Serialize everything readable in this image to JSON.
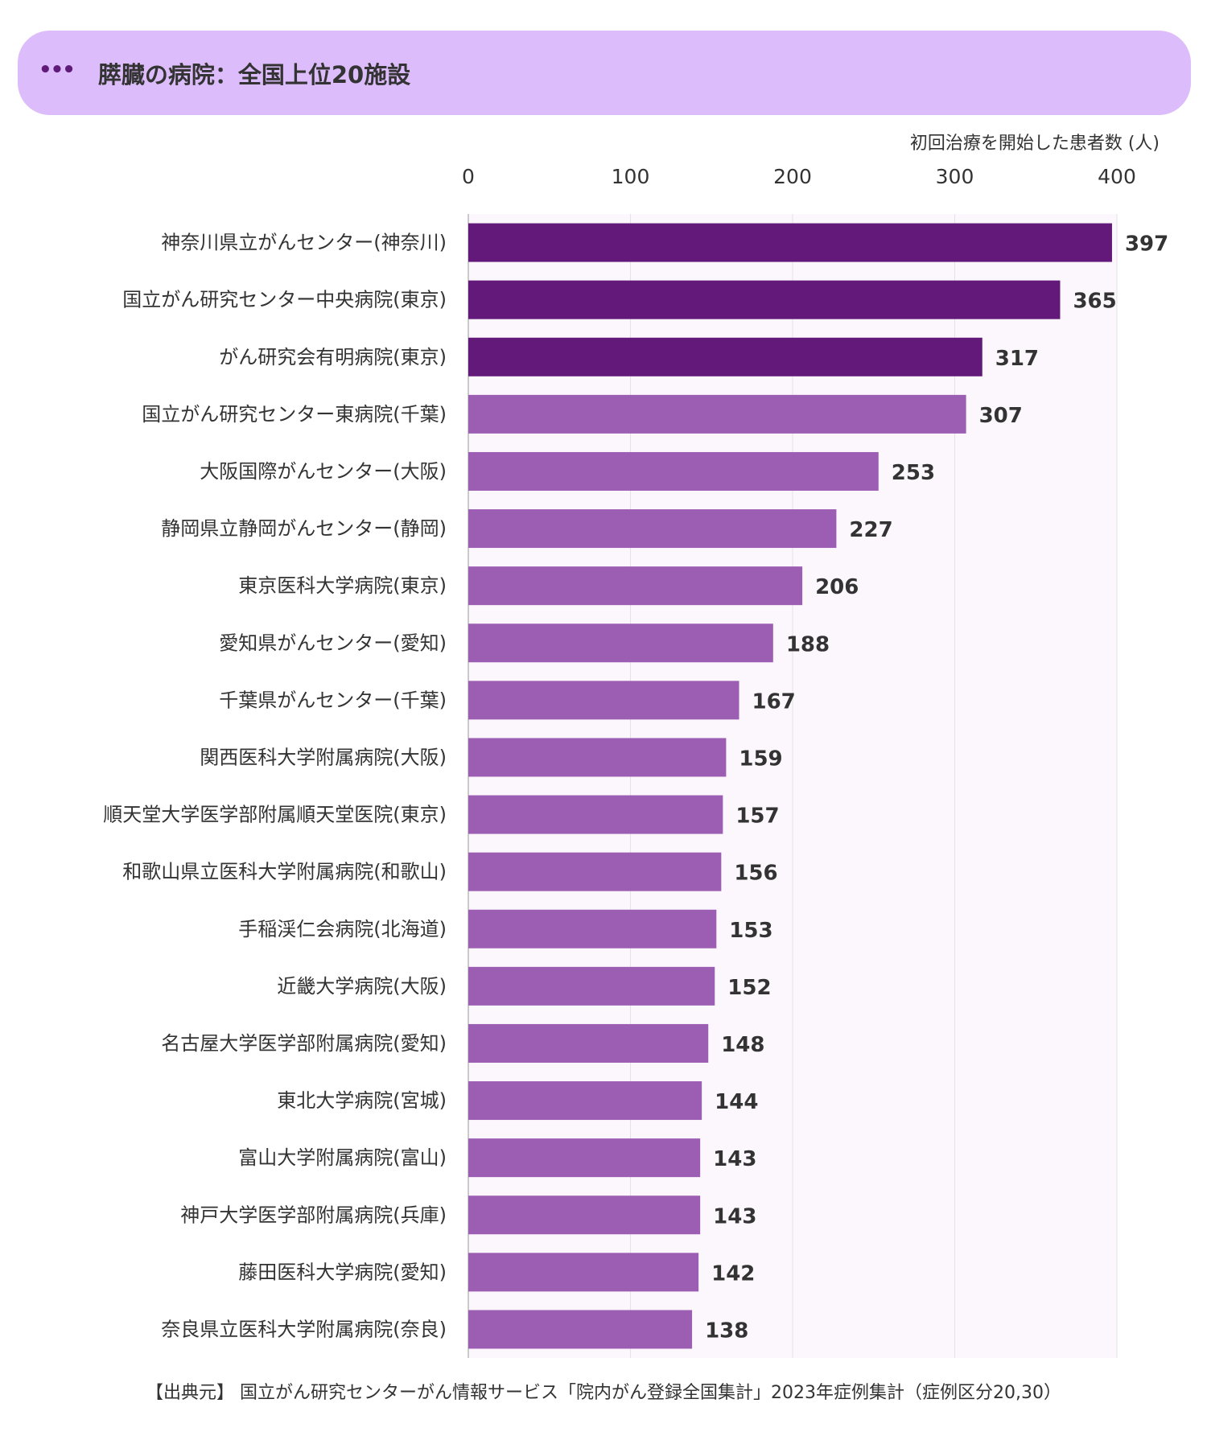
{
  "header": {
    "icon": "ellipsis-icon",
    "title": "膵臓の病院：全国上位20施設"
  },
  "colors": {
    "header_bg": "#dcbcfa",
    "icon": "#5f1a7a",
    "top3": "#62197a",
    "other": "#9c5eb3",
    "plot_bg": "#fcf6fd",
    "grid": "#e6e0e8"
  },
  "chart_data": {
    "type": "bar",
    "orientation": "horizontal",
    "ylabel": "初回治療を開始した患者数 (人)",
    "xlim": [
      0,
      400
    ],
    "ticks": [
      0,
      100,
      200,
      300,
      400
    ],
    "grid": true,
    "categories": [
      "神奈川県立がんセンター(神奈川)",
      "国立がん研究センター中央病院(東京)",
      "がん研究会有明病院(東京)",
      "国立がん研究センター東病院(千葉)",
      "大阪国際がんセンター(大阪)",
      "静岡県立静岡がんセンター(静岡)",
      "東京医科大学病院(東京)",
      "愛知県がんセンター(愛知)",
      "千葉県がんセンター(千葉)",
      "関西医科大学附属病院(大阪)",
      "順天堂大学医学部附属順天堂医院(東京)",
      "和歌山県立医科大学附属病院(和歌山)",
      "手稲渓仁会病院(北海道)",
      "近畿大学病院(大阪)",
      "名古屋大学医学部附属病院(愛知)",
      "東北大学病院(宮城)",
      "富山大学附属病院(富山)",
      "神戸大学医学部附属病院(兵庫)",
      "藤田医科大学病院(愛知)",
      "奈良県立医科大学附属病院(奈良)"
    ],
    "values": [
      397,
      365,
      317,
      307,
      253,
      227,
      206,
      188,
      167,
      159,
      157,
      156,
      153,
      152,
      148,
      144,
      143,
      143,
      142,
      138
    ],
    "highlight_count": 3
  },
  "source": "【出典元】 国立がん研究センターがん情報サービス「院内がん登録全国集計」2023年症例集計（症例区分20,30）"
}
